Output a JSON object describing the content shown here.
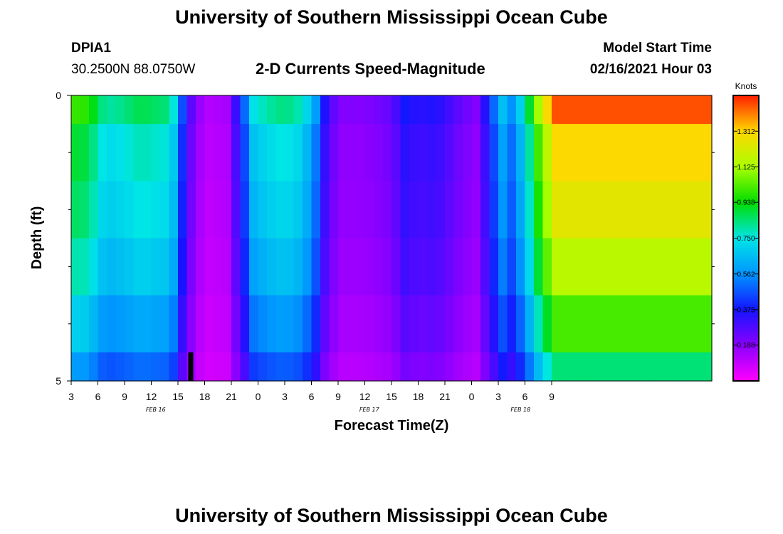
{
  "page": {
    "title": "University of Southern Mississippi Ocean Cube",
    "footer_title": "University of Southern Mississippi Ocean Cube",
    "station_id": "DPIA1",
    "station_coords": "30.2500N 88.0750W",
    "plot_title": "2-D Currents Speed-Magnitude",
    "model_start_label": "Model Start Time",
    "model_start_value": "02/16/2021 Hour 03"
  },
  "chart_data": {
    "type": "heatmap",
    "title": "2-D Currents Speed-Magnitude",
    "xlabel": "Forecast Time(Z)",
    "ylabel": "Depth (ft)",
    "x_hours": [
      0,
      72
    ],
    "xticks": [
      {
        "h": 0,
        "label": "3"
      },
      {
        "h": 3,
        "label": "6"
      },
      {
        "h": 6,
        "label": "9"
      },
      {
        "h": 9,
        "label": "12"
      },
      {
        "h": 12,
        "label": "15"
      },
      {
        "h": 15,
        "label": "18"
      },
      {
        "h": 18,
        "label": "21"
      },
      {
        "h": 21,
        "label": "0"
      },
      {
        "h": 24,
        "label": "3"
      },
      {
        "h": 27,
        "label": "6"
      },
      {
        "h": 30,
        "label": "9"
      },
      {
        "h": 33,
        "label": "12"
      },
      {
        "h": 36,
        "label": "15"
      },
      {
        "h": 39,
        "label": "18"
      },
      {
        "h": 42,
        "label": "21"
      },
      {
        "h": 45,
        "label": "0"
      },
      {
        "h": 48,
        "label": "3"
      },
      {
        "h": 51,
        "label": "6"
      },
      {
        "h": 54,
        "label": "9"
      }
    ],
    "date_labels": [
      {
        "h": 9.5,
        "label": "FEB 16"
      },
      {
        "h": 33.5,
        "label": "FEB 17"
      },
      {
        "h": 50.5,
        "label": "FEB 18"
      }
    ],
    "y_range": [
      0,
      5
    ],
    "yticks": [
      {
        "v": 0,
        "label": "0"
      },
      {
        "v": 5,
        "label": "5"
      }
    ],
    "y_minor_ticks": [
      1,
      2,
      3,
      4
    ],
    "depth_layers": [
      0,
      0.5,
      1.5,
      2.5,
      3.5,
      4.5
    ],
    "layer_bounds": [
      0,
      0.5,
      1.5,
      2.5,
      3.5,
      4.5,
      5
    ],
    "current_time_marker_h": 13.4,
    "colorbar": {
      "label": "Knots",
      "range": [
        0,
        1.5
      ],
      "ticks": [
        "0.188",
        "0.375",
        "0.562",
        "0.750",
        "0.938",
        "1.125",
        "1.312"
      ],
      "tick_values": [
        0.188,
        0.375,
        0.562,
        0.75,
        0.938,
        1.125,
        1.312
      ]
    },
    "speed_profile": [
      [
        0,
        1.0
      ],
      [
        2,
        0.98
      ],
      [
        3,
        0.86
      ],
      [
        4,
        0.8
      ],
      [
        6,
        0.83
      ],
      [
        7,
        0.86
      ],
      [
        8,
        0.88
      ],
      [
        9,
        0.86
      ],
      [
        11,
        0.84
      ],
      [
        12,
        0.68
      ],
      [
        12.5,
        0.46
      ],
      [
        13.5,
        0.26
      ],
      [
        14.5,
        0.16
      ],
      [
        15.5,
        0.12
      ],
      [
        17.5,
        0.14
      ],
      [
        18.5,
        0.32
      ],
      [
        19.5,
        0.5
      ],
      [
        20.5,
        0.74
      ],
      [
        22,
        0.8
      ],
      [
        24,
        0.84
      ],
      [
        26,
        0.78
      ],
      [
        27.5,
        0.58
      ],
      [
        28.5,
        0.36
      ],
      [
        30,
        0.2
      ],
      [
        33,
        0.2
      ],
      [
        36,
        0.25
      ],
      [
        37.5,
        0.38
      ],
      [
        39,
        0.34
      ],
      [
        41,
        0.36
      ],
      [
        42.5,
        0.3
      ],
      [
        44,
        0.24
      ],
      [
        45.5,
        0.2
      ],
      [
        47,
        0.42
      ],
      [
        48.5,
        0.66
      ],
      [
        49.5,
        0.56
      ],
      [
        50,
        0.38
      ],
      [
        50.5,
        0.7
      ],
      [
        51.5,
        0.9
      ],
      [
        52.5,
        1.12
      ],
      [
        53.5,
        1.3
      ],
      [
        54,
        1.45
      ]
    ],
    "depth_factors": [
      1.0,
      0.9,
      0.86,
      0.8,
      0.7,
      0.58
    ]
  }
}
